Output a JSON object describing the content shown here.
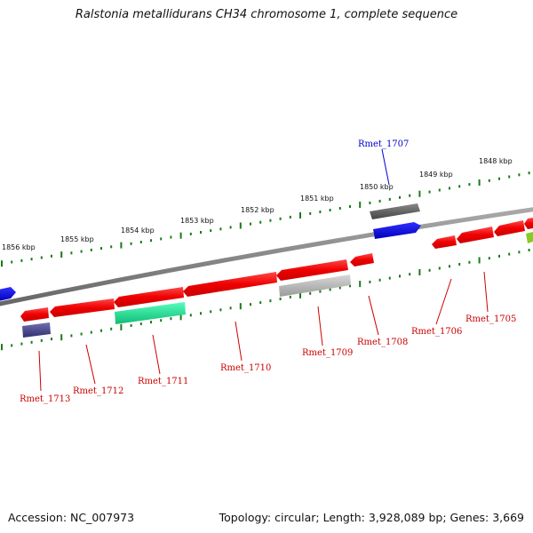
{
  "header": {
    "title": "Ralstonia metallidurans CH34 chromosome 1, complete sequence"
  },
  "footer": {
    "accession": "Accession: NC_007973",
    "summary": "Topology: circular; Length: 3,928,089 bp; Genes: 3,669"
  },
  "ruler": {
    "labels": [
      {
        "text": "1856 kbp"
      },
      {
        "text": "1855 kbp"
      },
      {
        "text": "1854 kbp"
      },
      {
        "text": "1853 kbp"
      },
      {
        "text": "1852 kbp"
      },
      {
        "text": "1851 kbp"
      },
      {
        "text": "1850 kbp"
      },
      {
        "text": "1849 kbp"
      },
      {
        "text": "1848 kbp"
      }
    ]
  },
  "genes": [
    {
      "name": "Rmet_1713",
      "color": "#cc0000"
    },
    {
      "name": "Rmet_1712",
      "color": "#cc0000"
    },
    {
      "name": "Rmet_1711",
      "color": "#cc0000"
    },
    {
      "name": "Rmet_1710",
      "color": "#cc0000"
    },
    {
      "name": "Rmet_1709",
      "color": "#cc0000"
    },
    {
      "name": "Rmet_1708",
      "color": "#cc0000"
    },
    {
      "name": "Rmet_1706",
      "color": "#cc0000"
    },
    {
      "name": "Rmet_1705",
      "color": "#cc0000"
    },
    {
      "name": "Rmet_1707",
      "color": "#0000cc"
    }
  ],
  "colors": {
    "cds": "#ff0000",
    "rna_gray": "#b0b0b0",
    "rna_green": "#22dd99",
    "rna_purple": "#4a4a90",
    "rna_blue": "#0000ee",
    "rna_dark": "#555555",
    "tick": "#1a7a1a",
    "backbone": "#7a7a7a"
  }
}
